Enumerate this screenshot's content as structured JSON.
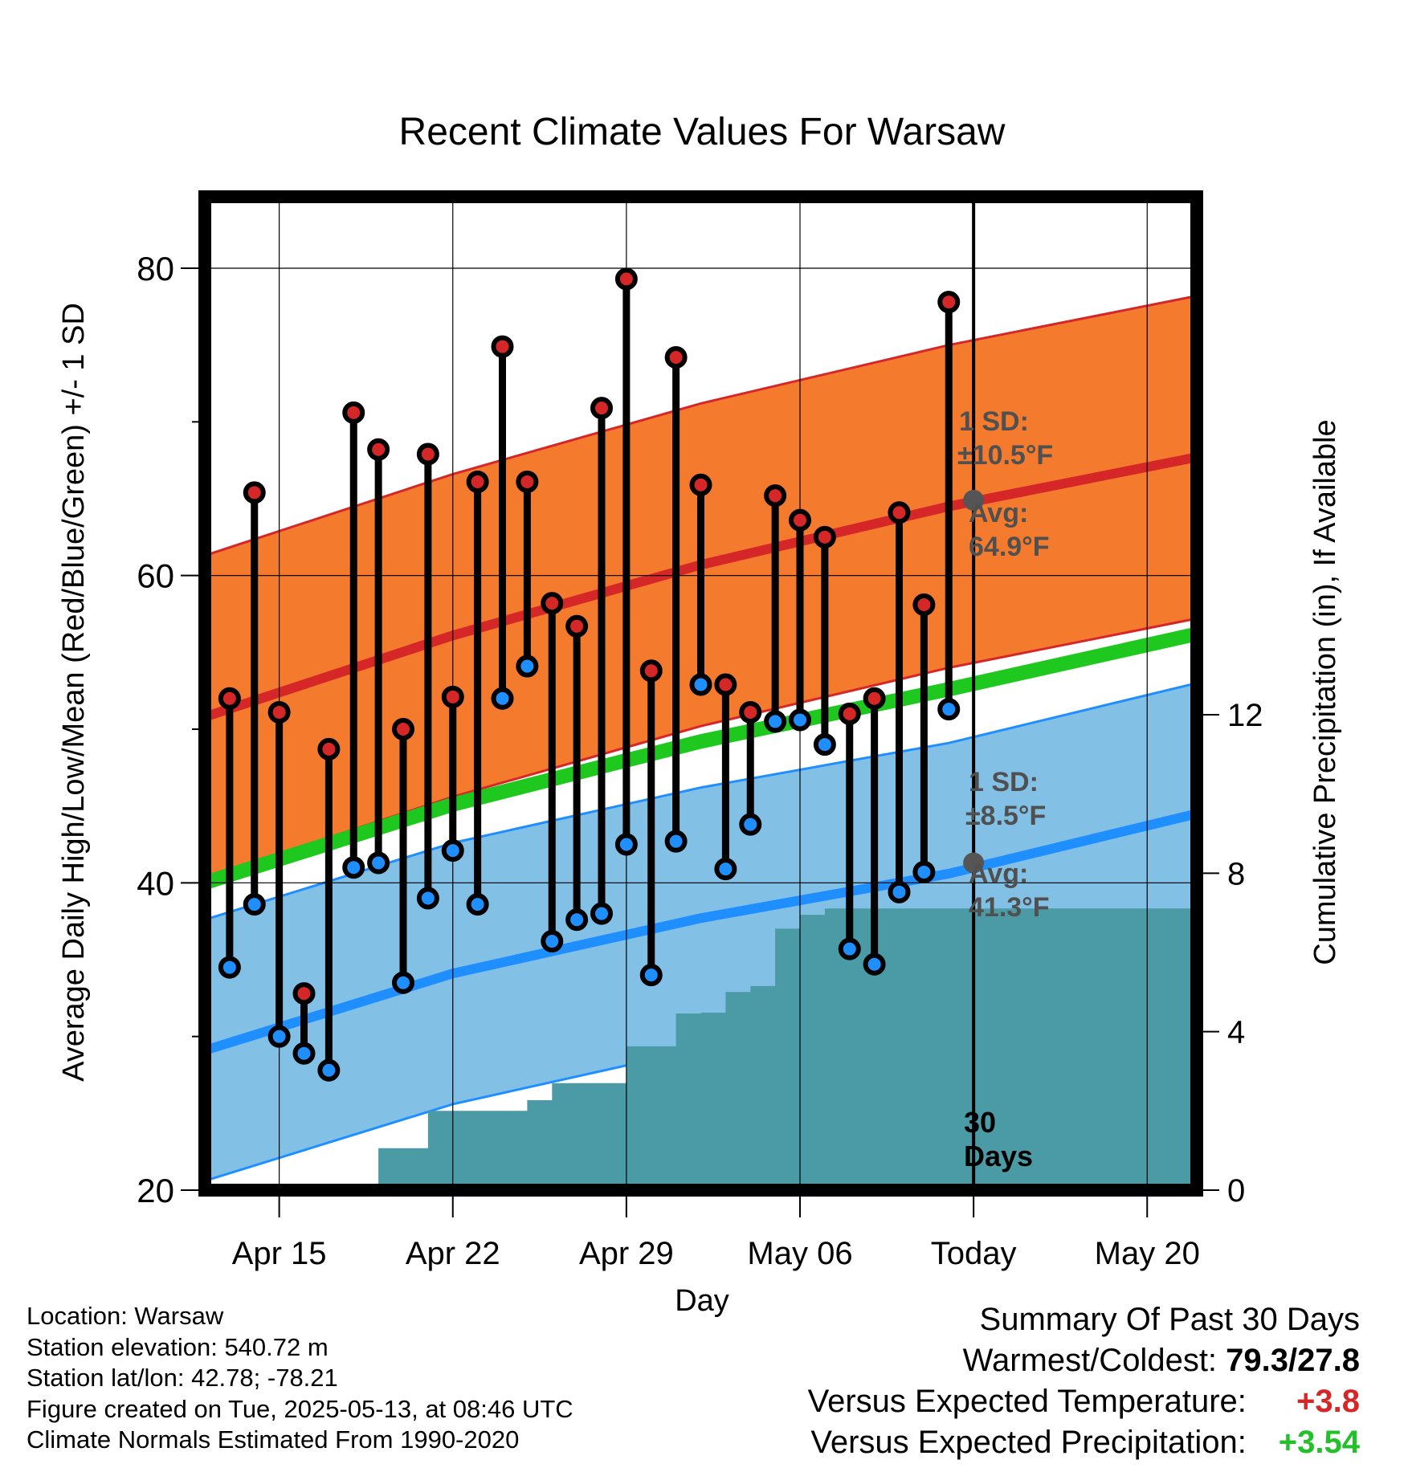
{
  "colors": {
    "high_dot": "#d62728",
    "low_dot": "#1f8fff",
    "high_band": "#f47a2e",
    "low_band": "#83c0e6",
    "high_normal": "#d62728",
    "low_normal": "#1f8fff",
    "mean_normal": "#1ec81e",
    "precip_fill": "#4a9ba5",
    "annotation": "#505050"
  },
  "chart_data": {
    "type": "line",
    "title": "Recent Climate Values For Warsaw",
    "xlabel": "Day",
    "ylabel": "Average Daily High/Low/Mean (Red/Blue/Green) +/- 1 SD",
    "y2label": "Cumulative Precipitation (in), If Available",
    "ylim": [
      20,
      80
    ],
    "y_ticks": [
      "20",
      "40",
      "60",
      "80"
    ],
    "y2lim": [
      0,
      12
    ],
    "y2_ticks": [
      "0",
      "4",
      "8",
      "12"
    ],
    "x_tick_labels": [
      "Apr 15",
      "Apr 22",
      "Apr 29",
      "May 06",
      "Today",
      "May 20"
    ],
    "x_tick_dates": [
      "2025-04-15",
      "2025-04-22",
      "2025-04-29",
      "2025-05-06",
      "2025-05-13",
      "2025-05-20"
    ],
    "x_range": [
      "2025-04-12",
      "2025-05-22"
    ],
    "today_date": "2025-05-13",
    "days": [
      "2025-04-13",
      "2025-04-14",
      "2025-04-15",
      "2025-04-16",
      "2025-04-17",
      "2025-04-18",
      "2025-04-19",
      "2025-04-20",
      "2025-04-21",
      "2025-04-22",
      "2025-04-23",
      "2025-04-24",
      "2025-04-25",
      "2025-04-26",
      "2025-04-27",
      "2025-04-28",
      "2025-04-29",
      "2025-04-30",
      "2025-05-01",
      "2025-05-02",
      "2025-05-03",
      "2025-05-04",
      "2025-05-05",
      "2025-05-06",
      "2025-05-07",
      "2025-05-08",
      "2025-05-09",
      "2025-05-10",
      "2025-05-11",
      "2025-05-12"
    ],
    "series": [
      {
        "name": "High",
        "values": [
          52.0,
          65.4,
          51.1,
          32.8,
          48.7,
          70.6,
          68.2,
          50.0,
          67.9,
          52.1,
          66.1,
          74.9,
          66.1,
          58.2,
          56.7,
          70.9,
          79.3,
          53.8,
          74.2,
          65.9,
          52.9,
          51.1,
          65.2,
          63.6,
          62.5,
          51.0,
          52.0,
          64.1,
          58.1,
          77.8
        ]
      },
      {
        "name": "Low",
        "values": [
          34.5,
          38.6,
          30.0,
          28.9,
          27.8,
          41.0,
          41.3,
          33.5,
          39.0,
          42.1,
          38.6,
          52.0,
          54.1,
          36.2,
          37.6,
          38.0,
          42.5,
          34.0,
          42.7,
          52.9,
          40.9,
          43.8,
          50.5,
          50.6,
          49.0,
          35.7,
          34.7,
          39.4,
          40.7,
          51.3
        ]
      }
    ],
    "normals": {
      "dates": [
        "2025-04-12",
        "2025-04-22",
        "2025-05-02",
        "2025-05-12",
        "2025-05-22"
      ],
      "high_avg": [
        50.8,
        56.1,
        60.7,
        64.5,
        67.7
      ],
      "low_avg": [
        29.1,
        34.1,
        37.7,
        40.6,
        44.5
      ],
      "mean_avg": [
        40.0,
        45.1,
        49.2,
        52.6,
        56.2
      ],
      "high_sd": 10.5,
      "low_sd": 8.5
    },
    "precip_cumulative": {
      "dates": [
        "2025-04-15",
        "2025-04-16",
        "2025-04-17",
        "2025-04-18",
        "2025-04-19",
        "2025-04-20",
        "2025-04-21",
        "2025-04-22",
        "2025-04-23",
        "2025-04-24",
        "2025-04-25",
        "2025-04-26",
        "2025-04-27",
        "2025-04-28",
        "2025-04-29",
        "2025-04-30",
        "2025-05-01",
        "2025-05-02",
        "2025-05-03",
        "2025-05-04",
        "2025-05-05",
        "2025-05-06",
        "2025-05-07",
        "2025-05-12"
      ],
      "values": [
        0.0,
        0.07,
        0.07,
        0.1,
        1.06,
        1.06,
        2.0,
        2.0,
        2.0,
        2.0,
        2.27,
        2.7,
        2.7,
        2.7,
        3.63,
        3.63,
        4.46,
        4.48,
        5.0,
        5.15,
        6.6,
        6.95,
        7.11,
        7.11
      ]
    },
    "annotations": {
      "high_sd_label": "1 SD:",
      "high_sd_value": "±10.5°F",
      "high_avg_label": "Avg:",
      "high_avg_value": "64.9°F",
      "low_sd_label": "1 SD:",
      "low_sd_value": "±8.5°F",
      "low_avg_label": "Avg:",
      "low_avg_value": "41.3°F",
      "days_count": "30",
      "days_word": "Days"
    }
  },
  "info": {
    "location": "Location: Warsaw",
    "elevation": "Station elevation: 540.72 m",
    "latlon": "Station lat/lon: 42.78; -78.21",
    "created": "Figure created on Tue, 2025-05-13, at 08:46 UTC",
    "normals": "Climate Normals Estimated From 1990-2020"
  },
  "summary": {
    "title": "Summary Of Past 30 Days",
    "warm_label": "Warmest/Coldest:",
    "warm_value": "79.3/27.8",
    "temp_label": "Versus Expected Temperature:",
    "temp_value": "+3.8",
    "precip_label": "Versus Expected Precipitation:",
    "precip_value": "+3.54"
  }
}
